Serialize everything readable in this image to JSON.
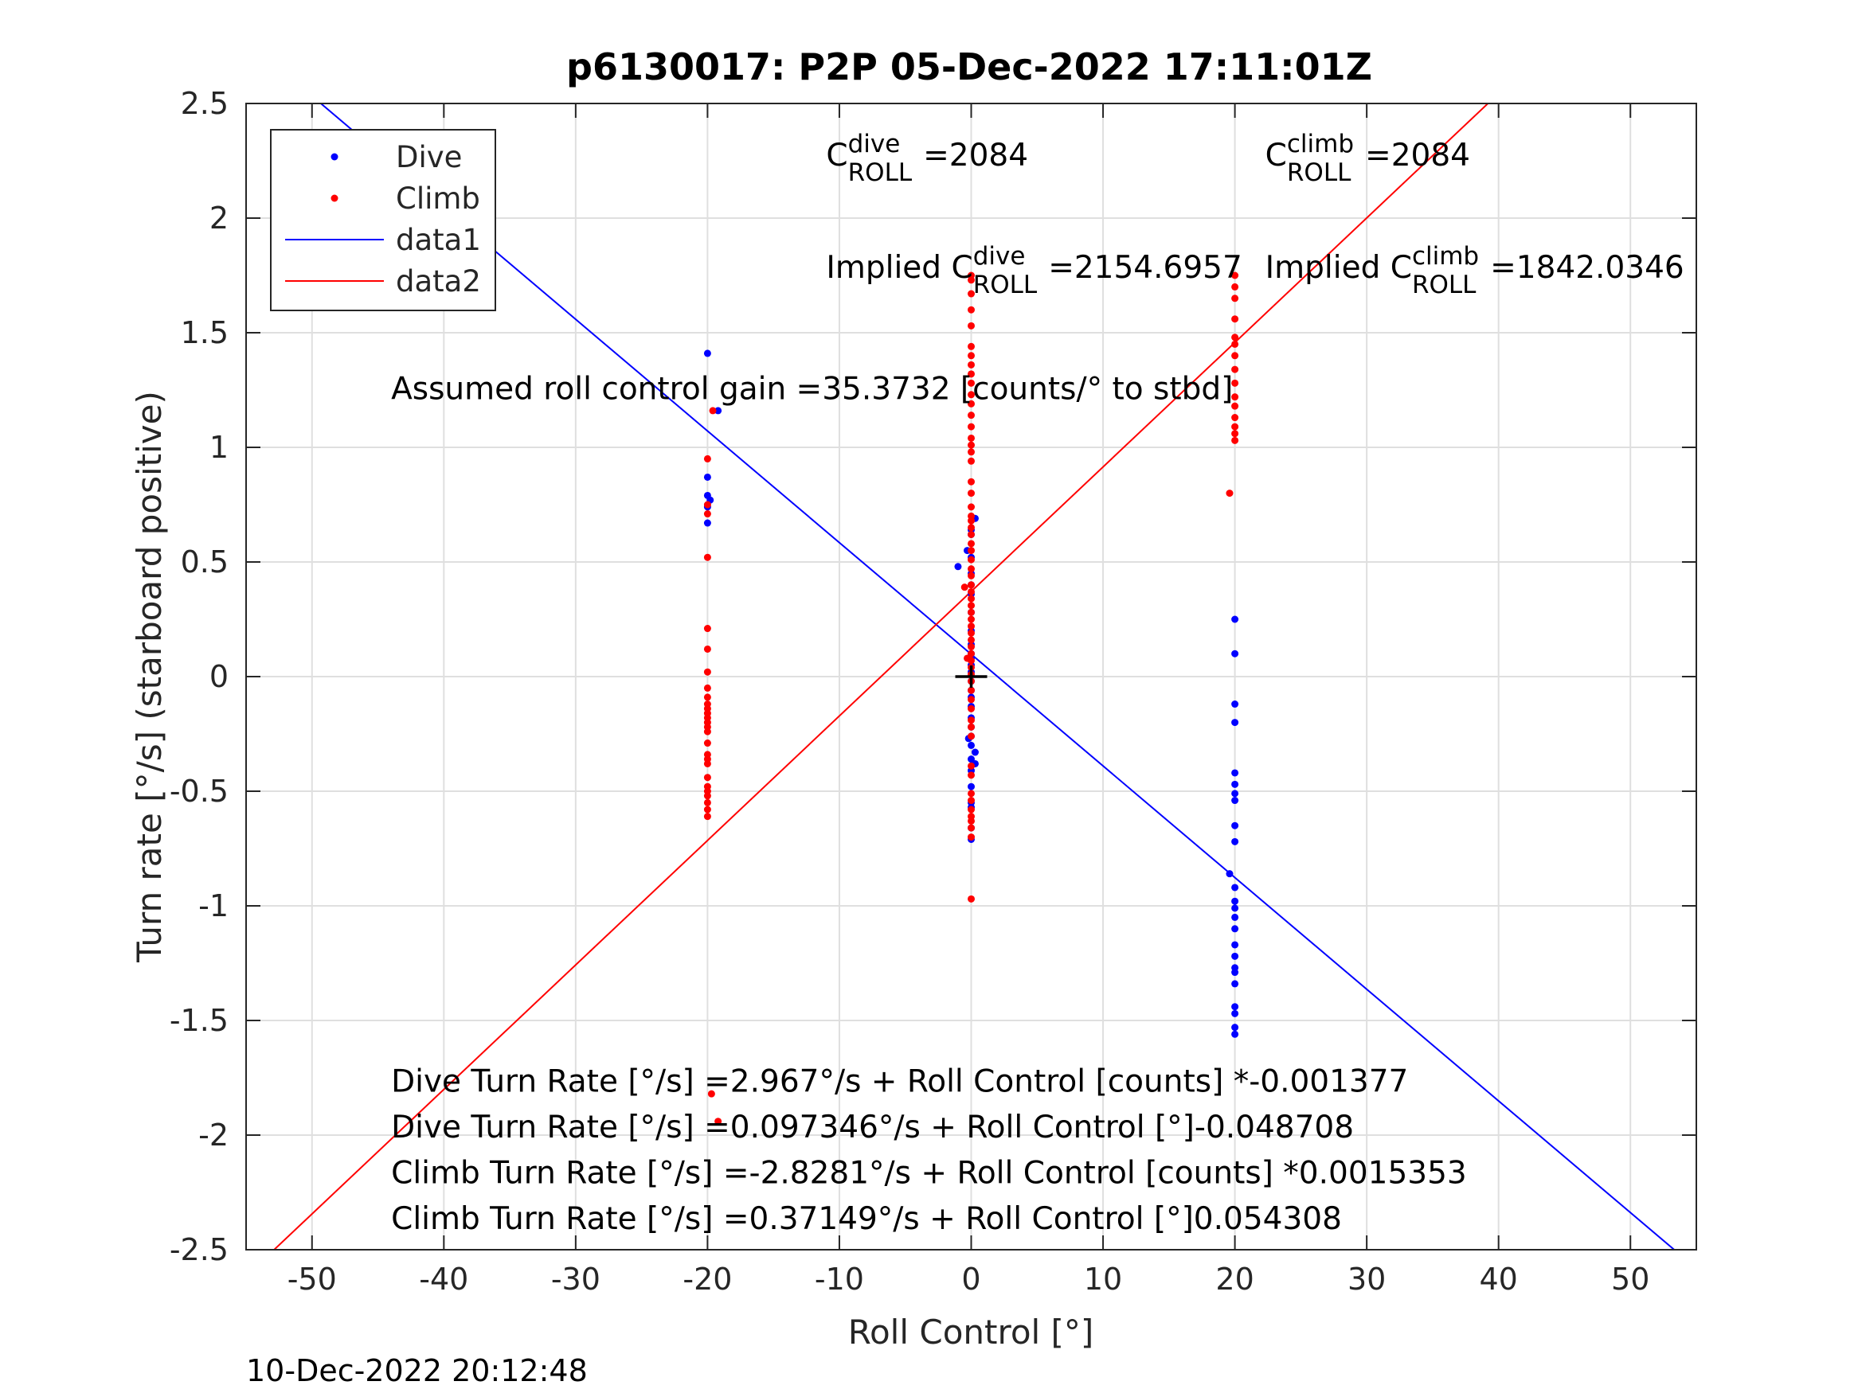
{
  "chart_data": {
    "type": "scatter",
    "title": "p6130017: P2P 05-Dec-2022 17:11:01Z",
    "xlabel": "Roll Control [°]",
    "ylabel": "Turn rate [°/s] (starboard positive)",
    "xlim": [
      -55,
      55
    ],
    "ylim": [
      -2.5,
      2.5
    ],
    "xticks": [
      -50,
      -40,
      -30,
      -20,
      -10,
      0,
      10,
      20,
      30,
      40,
      50
    ],
    "yticks": [
      -2.5,
      -2,
      -1.5,
      -1,
      -0.5,
      0,
      0.5,
      1,
      1.5,
      2,
      2.5
    ],
    "xtick_labels": [
      "-50",
      "-40",
      "-30",
      "-20",
      "-10",
      "0",
      "10",
      "20",
      "30",
      "40",
      "50"
    ],
    "ytick_labels": [
      "-2.5",
      "-2",
      "-1.5",
      "-1",
      "-0.5",
      "0",
      "0.5",
      "1",
      "1.5",
      "2",
      "2.5"
    ],
    "grid": true,
    "legend_position": "top-left",
    "legend": [
      {
        "label": "Dive",
        "kind": "marker",
        "color": "#0000ff"
      },
      {
        "label": "Climb",
        "kind": "marker",
        "color": "#ff0000"
      },
      {
        "label": "data1",
        "kind": "line",
        "color": "#0000ff"
      },
      {
        "label": "data2",
        "kind": "line",
        "color": "#ff0000"
      }
    ],
    "series": [
      {
        "name": "Dive",
        "kind": "scatter",
        "color": "#0000ff",
        "points": [
          [
            -20,
            1.41
          ],
          [
            -19.2,
            1.16
          ],
          [
            -20,
            0.87
          ],
          [
            -20,
            0.79
          ],
          [
            -19.8,
            0.77
          ],
          [
            -20,
            0.74
          ],
          [
            -20,
            0.67
          ],
          [
            -1,
            0.48
          ],
          [
            -0.3,
            0.55
          ],
          [
            0,
            0.62
          ],
          [
            0,
            0.64
          ],
          [
            0,
            0.52
          ],
          [
            0,
            0.45
          ],
          [
            0,
            0.4
          ],
          [
            0,
            0.36
          ],
          [
            0,
            0.28
          ],
          [
            0,
            0.2
          ],
          [
            0,
            0.14
          ],
          [
            0,
            0.1
          ],
          [
            0,
            0.08
          ],
          [
            0,
            0.05
          ],
          [
            0,
            0.02
          ],
          [
            0,
            -0.02
          ],
          [
            0,
            -0.06
          ],
          [
            0,
            -0.09
          ],
          [
            0,
            -0.13
          ],
          [
            0,
            -0.18
          ],
          [
            0,
            -0.22
          ],
          [
            0,
            -0.26
          ],
          [
            0,
            -0.3
          ],
          [
            0,
            -0.36
          ],
          [
            0,
            -0.41
          ],
          [
            0,
            -0.48
          ],
          [
            0,
            -0.55
          ],
          [
            0,
            -0.57
          ],
          [
            0,
            -0.66
          ],
          [
            0,
            -0.71
          ],
          [
            0.3,
            0.69
          ],
          [
            0.3,
            -0.33
          ],
          [
            0.3,
            -0.38
          ],
          [
            -0.2,
            -0.27
          ],
          [
            20,
            0.25
          ],
          [
            20,
            0.1
          ],
          [
            20,
            -0.12
          ],
          [
            20,
            -0.2
          ],
          [
            20,
            -0.42
          ],
          [
            20,
            -0.47
          ],
          [
            20,
            -0.51
          ],
          [
            20,
            -0.54
          ],
          [
            20,
            -0.65
          ],
          [
            20,
            -0.72
          ],
          [
            19.6,
            -0.86
          ],
          [
            20,
            -0.92
          ],
          [
            20,
            -0.98
          ],
          [
            20,
            -1.01
          ],
          [
            20,
            -1.05
          ],
          [
            20,
            -1.1
          ],
          [
            20,
            -1.17
          ],
          [
            20,
            -1.22
          ],
          [
            20,
            -1.27
          ],
          [
            20,
            -1.29
          ],
          [
            20,
            -1.34
          ],
          [
            20,
            -1.44
          ],
          [
            20,
            -1.47
          ],
          [
            20,
            -1.53
          ],
          [
            20,
            -1.56
          ]
        ]
      },
      {
        "name": "Climb",
        "kind": "scatter",
        "color": "#ff0000",
        "points": [
          [
            -19.6,
            1.16
          ],
          [
            -20,
            0.95
          ],
          [
            -20,
            0.75
          ],
          [
            -20,
            0.71
          ],
          [
            -20,
            0.52
          ],
          [
            -20,
            0.21
          ],
          [
            -20,
            0.12
          ],
          [
            -20,
            0.02
          ],
          [
            -20,
            -0.05
          ],
          [
            -20,
            -0.09
          ],
          [
            -20,
            -0.12
          ],
          [
            -20,
            -0.14
          ],
          [
            -20,
            -0.16
          ],
          [
            -20,
            -0.18
          ],
          [
            -20,
            -0.2
          ],
          [
            -20,
            -0.22
          ],
          [
            -20,
            -0.24
          ],
          [
            -20,
            -0.29
          ],
          [
            -20,
            -0.34
          ],
          [
            -20,
            -0.36
          ],
          [
            -20,
            -0.38
          ],
          [
            -20,
            -0.44
          ],
          [
            -20,
            -0.48
          ],
          [
            -20,
            -0.5
          ],
          [
            -20,
            -0.52
          ],
          [
            -20,
            -0.55
          ],
          [
            -20,
            -0.58
          ],
          [
            -20,
            -0.61
          ],
          [
            -19.7,
            -1.82
          ],
          [
            -19.2,
            -1.94
          ],
          [
            0,
            1.75
          ],
          [
            0,
            1.73
          ],
          [
            0,
            1.67
          ],
          [
            0,
            1.6
          ],
          [
            0,
            1.53
          ],
          [
            0,
            1.44
          ],
          [
            0,
            1.4
          ],
          [
            0,
            1.36
          ],
          [
            0,
            1.32
          ],
          [
            0,
            1.28
          ],
          [
            0,
            1.23
          ],
          [
            0,
            1.19
          ],
          [
            0,
            1.14
          ],
          [
            0,
            1.09
          ],
          [
            0,
            1.04
          ],
          [
            0,
            1.01
          ],
          [
            0,
            0.98
          ],
          [
            0,
            0.94
          ],
          [
            0,
            0.85
          ],
          [
            0,
            0.8
          ],
          [
            0,
            0.74
          ],
          [
            0,
            0.7
          ],
          [
            0,
            0.68
          ],
          [
            0,
            0.65
          ],
          [
            0,
            0.62
          ],
          [
            0,
            0.58
          ],
          [
            0,
            0.55
          ],
          [
            0,
            0.51
          ],
          [
            0,
            0.47
          ],
          [
            0,
            0.44
          ],
          [
            0,
            0.4
          ],
          [
            0,
            0.37
          ],
          [
            0,
            0.34
          ],
          [
            0,
            0.31
          ],
          [
            0,
            0.28
          ],
          [
            0,
            0.25
          ],
          [
            0,
            0.22
          ],
          [
            0,
            0.19
          ],
          [
            0,
            0.16
          ],
          [
            0,
            0.13
          ],
          [
            0,
            0.1
          ],
          [
            0,
            0.07
          ],
          [
            0,
            0.04
          ],
          [
            0,
            0.01
          ],
          [
            0,
            -0.02
          ],
          [
            0,
            -0.06
          ],
          [
            0,
            -0.1
          ],
          [
            0,
            -0.14
          ],
          [
            0,
            -0.19
          ],
          [
            0,
            -0.22
          ],
          [
            0,
            -0.26
          ],
          [
            0,
            -0.39
          ],
          [
            0,
            -0.43
          ],
          [
            0,
            -0.51
          ],
          [
            0,
            -0.54
          ],
          [
            0,
            -0.58
          ],
          [
            0,
            -0.61
          ],
          [
            0,
            -0.63
          ],
          [
            0,
            -0.66
          ],
          [
            0,
            -0.7
          ],
          [
            0,
            -0.97
          ],
          [
            -0.5,
            0.39
          ],
          [
            -0.3,
            0.08
          ],
          [
            19.6,
            0.8
          ],
          [
            20,
            1.75
          ],
          [
            20,
            1.7
          ],
          [
            20,
            1.65
          ],
          [
            20,
            1.56
          ],
          [
            20,
            1.48
          ],
          [
            20,
            1.45
          ],
          [
            20,
            1.4
          ],
          [
            20,
            1.34
          ],
          [
            20,
            1.28
          ],
          [
            20,
            1.22
          ],
          [
            20,
            1.18
          ],
          [
            20,
            1.13
          ],
          [
            20,
            1.09
          ],
          [
            20,
            1.06
          ],
          [
            20,
            1.03
          ]
        ]
      },
      {
        "name": "data1",
        "kind": "line",
        "color": "#0000ff",
        "intercept": 0.097346,
        "slope": -0.048708,
        "x": [
          -55,
          55
        ]
      },
      {
        "name": "data2",
        "kind": "line",
        "color": "#ff0000",
        "intercept": 0.37149,
        "slope": 0.054308,
        "x": [
          -55,
          55
        ]
      }
    ],
    "marker": {
      "x": 0,
      "y": 0,
      "symbol": "+",
      "color": "#000000"
    },
    "annotations": {
      "dive_croll": {
        "base": "C",
        "sup": "dive",
        "sub": "ROLL",
        "value": "=2084",
        "x": -11,
        "y": 2.23
      },
      "climb_croll": {
        "base": "C",
        "sup": "climb",
        "sub": "ROLL",
        "value": "=2084",
        "x": 22.3,
        "y": 2.23
      },
      "implied_dive": {
        "prefix": "Implied C",
        "sup": "dive",
        "sub": "ROLL",
        "value": "=2154.6957",
        "x": -11,
        "y": 1.74
      },
      "implied_climb": {
        "prefix": "Implied C",
        "sup": "climb",
        "sub": "ROLL",
        "value": "=1842.0346",
        "x": 22.3,
        "y": 1.74
      },
      "gain": {
        "text": "Assumed roll control gain =35.3732 [counts/° to stbd]",
        "x": -44,
        "y": 1.21
      },
      "eq1": {
        "text": "Dive Turn Rate [°/s] =2.967°/s + Roll Control [counts] *-0.001377",
        "x": -44,
        "y": -1.81
      },
      "eq2": {
        "text": "Dive Turn Rate [°/s] =0.097346°/s + Roll Control [°]-0.048708",
        "x": -44,
        "y": -2.01
      },
      "eq3": {
        "text": "Climb Turn Rate [°/s] =-2.8281°/s + Roll Control [counts] *0.0015353",
        "x": -44,
        "y": -2.21
      },
      "eq4": {
        "text": "Climb Turn Rate [°/s] =0.37149°/s + Roll Control [°]0.054308",
        "x": -44,
        "y": -2.41
      }
    }
  },
  "timestamp": "10-Dec-2022 20:12:48"
}
